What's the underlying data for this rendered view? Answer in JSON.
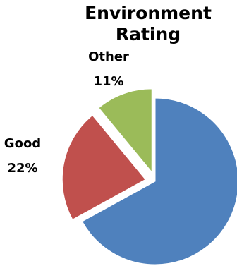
{
  "chart_data": {
    "type": "pie",
    "title_lines": [
      "Environment",
      "Rating"
    ],
    "slices": [
      {
        "label": "",
        "value": 67,
        "value_label": "",
        "color": "#4F81BD",
        "exploded": false
      },
      {
        "label": "Good",
        "value": 22,
        "value_label": "22%",
        "color": "#C0504D",
        "exploded": true
      },
      {
        "label": "Other",
        "value": 11,
        "value_label": "11%",
        "color": "#9BBB59",
        "exploded": true
      }
    ]
  }
}
